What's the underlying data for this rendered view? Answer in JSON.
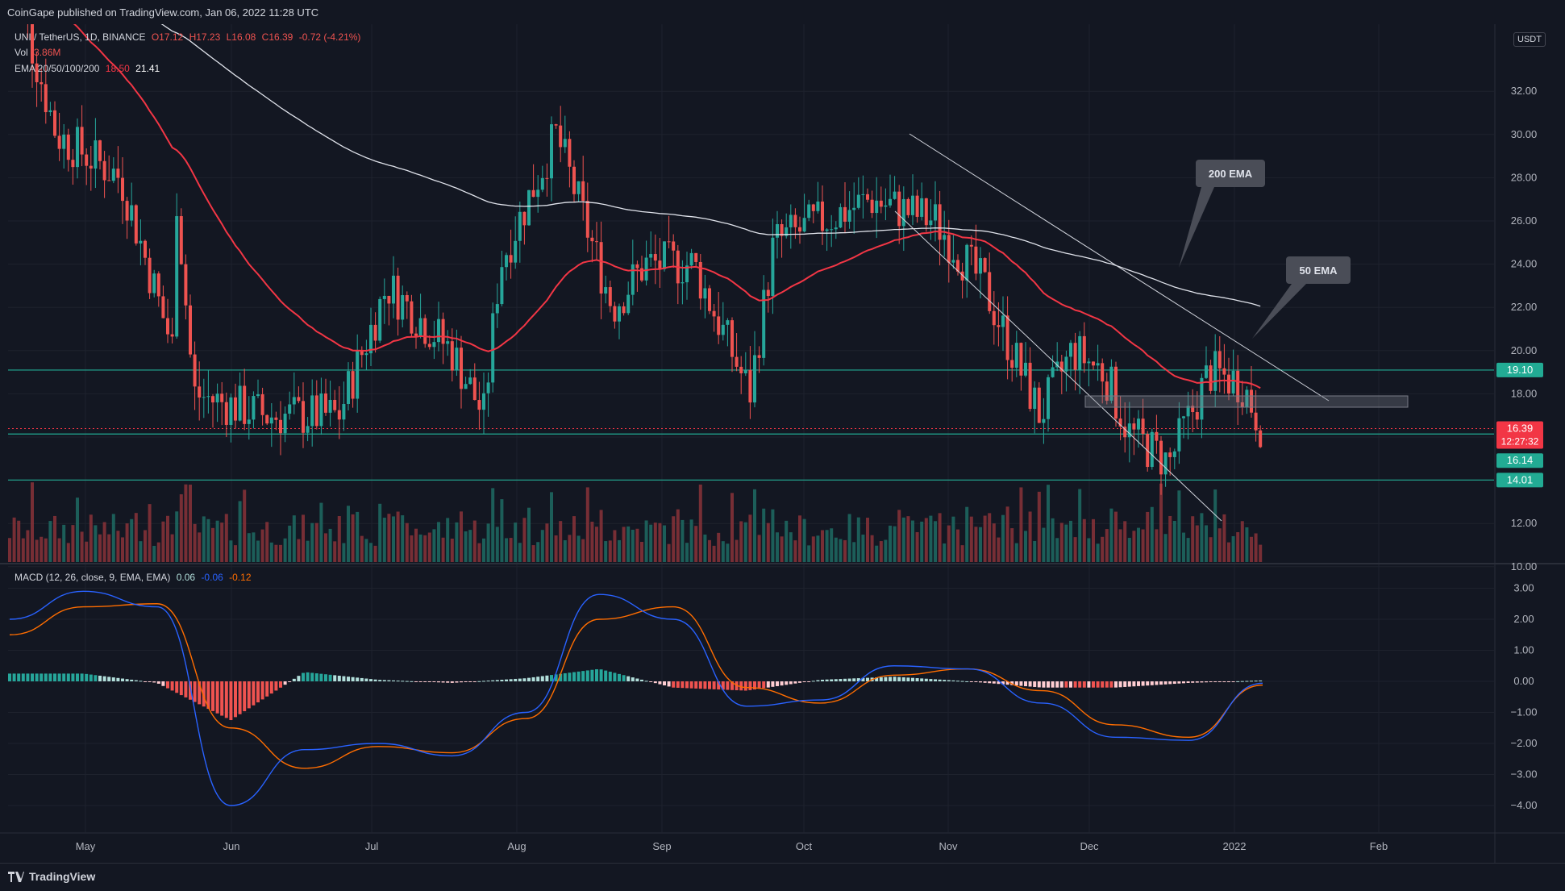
{
  "header": {
    "publisher_text": "CoinGape published on TradingView.com, Jan 06, 2022 11:28 UTC"
  },
  "legend": {
    "symbol_line": {
      "symbol": "UNI / TetherUS, 1D, BINANCE",
      "open": "O17.12",
      "high": "H17.23",
      "low": "L16.08",
      "close": "C16.39",
      "change": "-0.72 (-4.21%)"
    },
    "vol_label": "Vol",
    "vol_value": "3.86M",
    "ema_label": "EMA 20/50/100/200",
    "ema_50": "18.50",
    "ema_200": "21.41",
    "macd_label": "MACD (12, 26, close, 9, EMA, EMA)",
    "macd_hist": "0.06",
    "macd_line": "-0.06",
    "macd_signal": "-0.12"
  },
  "currency_label": "USDT",
  "bottom": {
    "brand": "TradingView"
  },
  "colors": {
    "background": "#131722",
    "bull": "#26a69a",
    "bear": "#ef5350",
    "ema50": "#f23645",
    "ema200": "#e0e3eb",
    "macd_line": "#2962ff",
    "signal_line": "#ff6d00",
    "level_line": "#22ab94"
  },
  "chart_data": [
    {
      "type": "candlestick",
      "title": "UNI / TetherUS, 1D, BINANCE",
      "x_ticks": [
        "May",
        "Jun",
        "Jul",
        "Aug",
        "Sep",
        "Oct",
        "Nov",
        "Dec",
        "2022",
        "Feb"
      ],
      "y_ticks": [
        10,
        12,
        14,
        16,
        18,
        20,
        22,
        24,
        26,
        28,
        30,
        32
      ],
      "ylim": [
        9,
        33
      ],
      "price_tags": [
        {
          "label": "19.10",
          "value": 19.1,
          "color": "#22ab94"
        },
        {
          "label": "16.39",
          "value": 16.39,
          "color": "#f23645",
          "countdown": "12:27:32"
        },
        {
          "label": "16.14",
          "value": 16.14,
          "color": "#22ab94"
        },
        {
          "label": "14.01",
          "value": 14.01,
          "color": "#22ab94"
        }
      ],
      "horizontal_levels": [
        19.1,
        16.14,
        14.01
      ],
      "annotations": [
        {
          "text": "200 EMA"
        },
        {
          "text": "50 EMA"
        }
      ],
      "ohlc_monthly_approx": [
        {
          "month": "May",
          "start": 38,
          "end": 26
        },
        {
          "month": "Jun",
          "start": 26,
          "end": 21
        },
        {
          "month": "Jul",
          "start": 21,
          "end": 16
        },
        {
          "month": "Aug",
          "start": 19,
          "end": 29
        },
        {
          "month": "Sep",
          "start": 29,
          "end": 24
        },
        {
          "month": "Oct",
          "start": 25,
          "end": 27
        },
        {
          "month": "Nov",
          "start": 27,
          "end": 22
        },
        {
          "month": "Dec",
          "start": 22,
          "end": 17.5
        },
        {
          "month": "2022",
          "start": 17.5,
          "end": 16.39
        }
      ],
      "last_close": 16.39,
      "volume_series_name": "Vol"
    },
    {
      "type": "line",
      "title": "MACD (12, 26, close, 9, EMA, EMA)",
      "y_ticks": [
        3,
        2,
        1,
        0,
        -1,
        -2,
        -3,
        -4
      ],
      "ylim": [
        -4.6,
        3.4
      ],
      "series": [
        {
          "name": "MACD",
          "values": [
            2.0,
            2.9,
            2.4,
            -4.0,
            -2.2,
            -2.0,
            -2.4,
            -1.0,
            2.8,
            2.0,
            -0.8,
            -0.6,
            0.5,
            0.4,
            -0.7,
            -1.8,
            -1.9,
            -0.06
          ]
        },
        {
          "name": "Signal",
          "values": [
            1.5,
            2.4,
            2.5,
            -1.5,
            -2.8,
            -2.1,
            -2.3,
            -1.2,
            2.0,
            2.4,
            -0.2,
            -0.7,
            0.2,
            0.4,
            -0.3,
            -1.4,
            -1.8,
            -0.12
          ]
        }
      ],
      "histogram_last": 0.06
    }
  ]
}
